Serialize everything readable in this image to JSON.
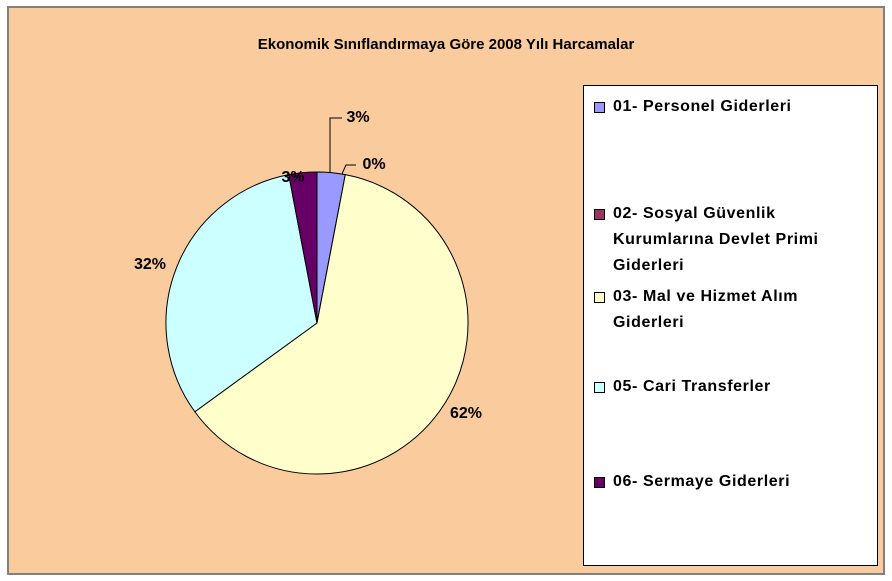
{
  "chart_data": {
    "type": "pie",
    "title": "Ekonomik Sınıflandırmaya Göre 2008 Yılı Harcamalar",
    "categories": [
      "01- Personel Giderleri",
      "02- Sosyal Güvenlik Kurumlarına Devlet Primi Giderleri",
      "03- Mal ve Hizmet Alım Giderleri",
      "05- Cari Transferler",
      "06- Sermaye Giderleri"
    ],
    "values": [
      3,
      0,
      62,
      32,
      3
    ],
    "value_labels": [
      "3%",
      "0%",
      "62%",
      "32%",
      "3%"
    ],
    "colors": [
      "#9999ff",
      "#993366",
      "#ffffcc",
      "#ccffff",
      "#660066"
    ],
    "legend": "right"
  }
}
